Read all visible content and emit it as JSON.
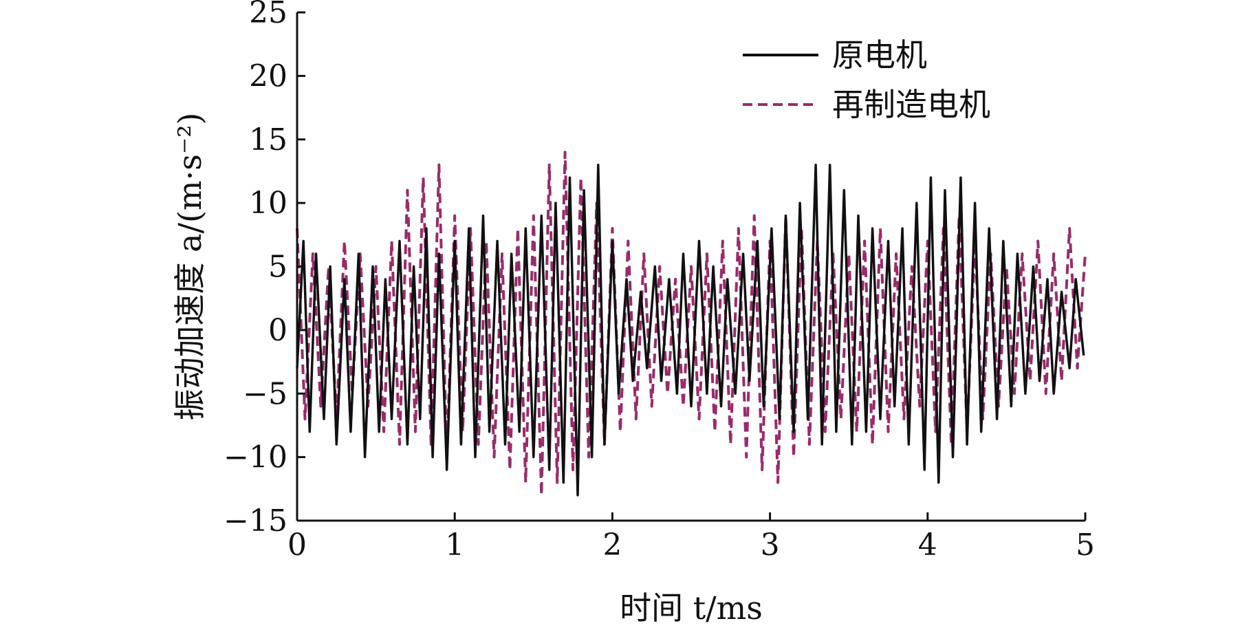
{
  "chart_data": {
    "type": "line",
    "title": "",
    "xlabel": "时间 t/ms",
    "ylabel": "振动加速度 a/(m·s⁻²)",
    "xlim": [
      0,
      5
    ],
    "ylim": [
      -15,
      25
    ],
    "x_ticks": [
      "0",
      "1",
      "2",
      "3",
      "4",
      "5"
    ],
    "y_ticks": [
      "−15",
      "−10",
      "−5",
      "0",
      "5",
      "10",
      "15",
      "20",
      "25"
    ],
    "grid": false,
    "legend_position": "top-right",
    "series": [
      {
        "name": "原电机",
        "color": "#111111",
        "style": "solid",
        "x": [
          0,
          0.04,
          0.08,
          0.12,
          0.17,
          0.21,
          0.25,
          0.3,
          0.34,
          0.39,
          0.43,
          0.48,
          0.52,
          0.56,
          0.6,
          0.65,
          0.7,
          0.74,
          0.78,
          0.82,
          0.86,
          0.9,
          0.95,
          1.0,
          1.04,
          1.09,
          1.13,
          1.18,
          1.22,
          1.27,
          1.32,
          1.36,
          1.41,
          1.45,
          1.5,
          1.55,
          1.6,
          1.64,
          1.69,
          1.73,
          1.78,
          1.82,
          1.87,
          1.91,
          1.95,
          2.0,
          2.04,
          2.09,
          2.13,
          2.18,
          2.22,
          2.27,
          2.31,
          2.36,
          2.41,
          2.45,
          2.5,
          2.55,
          2.6,
          2.64,
          2.69,
          2.73,
          2.78,
          2.83,
          2.87,
          2.92,
          2.96,
          3.01,
          3.06,
          3.1,
          3.15,
          3.19,
          3.24,
          3.29,
          3.33,
          3.38,
          3.42,
          3.47,
          3.52,
          3.56,
          3.61,
          3.65,
          3.7,
          3.75,
          3.79,
          3.84,
          3.88,
          3.93,
          3.98,
          4.02,
          4.07,
          4.11,
          4.16,
          4.21,
          4.25,
          4.3,
          4.34,
          4.39,
          4.44,
          4.48,
          4.53,
          4.57,
          4.62,
          4.67,
          4.71,
          4.76,
          4.8,
          4.85,
          4.9,
          4.94,
          4.99
        ],
        "y": [
          -3,
          7,
          -8,
          6,
          -7,
          5,
          -9,
          4,
          -8,
          6,
          -10,
          5,
          -8,
          4,
          -7,
          7,
          -9,
          5,
          -7,
          8,
          -10,
          6,
          -11,
          7,
          -9,
          8,
          -10,
          9,
          -8,
          7,
          -9,
          6,
          -8,
          8,
          -10,
          9,
          -11,
          10,
          -12,
          12,
          -13,
          11,
          -10,
          13,
          -9,
          7,
          -5,
          4,
          -4,
          3,
          -3,
          5,
          -4,
          4,
          -5,
          6,
          -6,
          7,
          -5,
          5,
          -6,
          4,
          -5,
          6,
          -4,
          7,
          -6,
          8,
          -7,
          9,
          -8,
          10,
          -7,
          13,
          -9,
          13,
          -8,
          11,
          -9,
          9,
          -8,
          8,
          -7,
          7,
          -6,
          8,
          -9,
          10,
          -11,
          12,
          -12,
          11,
          -10,
          12,
          -9,
          10,
          -8,
          8,
          -7,
          7,
          -6,
          6,
          -5,
          5,
          -4,
          4,
          -5,
          3,
          -3,
          4,
          -2
        ]
      },
      {
        "name": "再制造电机",
        "color": "#9b2a6a",
        "style": "dashed",
        "x": [
          0,
          0.05,
          0.1,
          0.15,
          0.2,
          0.25,
          0.3,
          0.35,
          0.4,
          0.45,
          0.5,
          0.55,
          0.6,
          0.65,
          0.7,
          0.75,
          0.8,
          0.85,
          0.9,
          0.95,
          1.0,
          1.05,
          1.1,
          1.15,
          1.2,
          1.25,
          1.3,
          1.35,
          1.4,
          1.45,
          1.5,
          1.55,
          1.6,
          1.65,
          1.7,
          1.75,
          1.8,
          1.85,
          1.9,
          1.95,
          2.0,
          2.05,
          2.1,
          2.15,
          2.2,
          2.25,
          2.3,
          2.35,
          2.4,
          2.45,
          2.5,
          2.55,
          2.6,
          2.65,
          2.7,
          2.75,
          2.8,
          2.85,
          2.9,
          2.95,
          3.0,
          3.05,
          3.1,
          3.15,
          3.2,
          3.25,
          3.3,
          3.35,
          3.4,
          3.45,
          3.5,
          3.55,
          3.6,
          3.65,
          3.7,
          3.75,
          3.8,
          3.85,
          3.9,
          3.95,
          4.0,
          4.05,
          4.1,
          4.15,
          4.2,
          4.25,
          4.3,
          4.35,
          4.4,
          4.45,
          4.5,
          4.55,
          4.6,
          4.65,
          4.7,
          4.75,
          4.8,
          4.85,
          4.9,
          4.95,
          5.0
        ],
        "y": [
          8,
          -7,
          6,
          -6,
          5,
          -7,
          7,
          -5,
          6,
          -6,
          5,
          -8,
          7,
          -9,
          11,
          -8,
          12,
          -9,
          13,
          -10,
          9,
          -8,
          8,
          -9,
          7,
          -10,
          6,
          -11,
          8,
          -12,
          9,
          -13,
          13,
          -12,
          14,
          -11,
          12,
          -10,
          10,
          -9,
          8,
          -8,
          7,
          -7,
          6,
          -6,
          5,
          -5,
          4,
          -6,
          5,
          -7,
          6,
          -8,
          7,
          -9,
          8,
          -10,
          9,
          -11,
          7,
          -12,
          9,
          -10,
          8,
          -9,
          7,
          -8,
          6,
          -7,
          6,
          -8,
          7,
          -9,
          8,
          -8,
          6,
          -7,
          5,
          -6,
          7,
          -8,
          8,
          -9,
          9,
          -8,
          7,
          -7,
          6,
          -6,
          5,
          -5,
          6,
          -4,
          7,
          -5,
          6,
          -4,
          8,
          -3,
          6
        ]
      }
    ]
  }
}
